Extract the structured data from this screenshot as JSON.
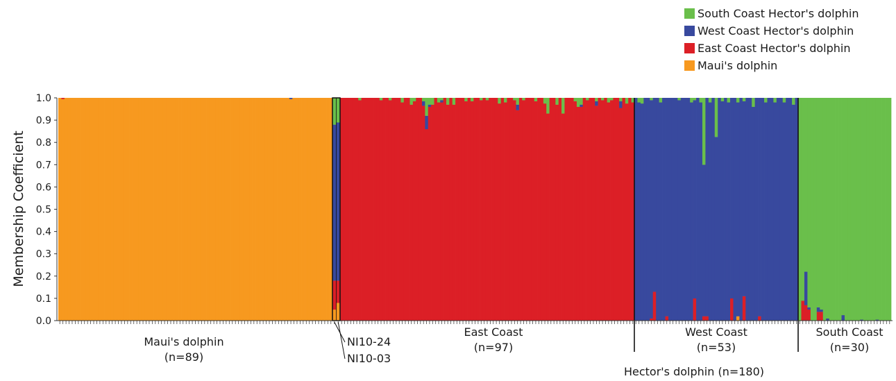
{
  "chart_data": {
    "type": "stacked-bar",
    "ylabel": "Membership Coefficient",
    "ylim": [
      0,
      1
    ],
    "yticks": [
      "0.0",
      "0.1",
      "0.2",
      "0.3",
      "0.4",
      "0.5",
      "0.6",
      "0.7",
      "0.8",
      "0.9",
      "1.0"
    ],
    "clusters": [
      {
        "name": "South Coast Hector's dolphin",
        "color": "#6abf4b"
      },
      {
        "name": "West Coast Hector's dolphin",
        "color": "#38499e"
      },
      {
        "name": "East Coast Hector's dolphin",
        "color": "#dc1f26"
      },
      {
        "name": "Maui's dolphin",
        "color": "#f7991f"
      }
    ],
    "legend_position": "top-right",
    "groups": [
      {
        "label": "Maui's dolphin",
        "n_label": "(n=89)",
        "n": 89
      },
      {
        "label": "East Coast",
        "n_label": "(n=97)",
        "n": 97
      },
      {
        "label": "West Coast",
        "n_label": "(n=53)",
        "n": 53
      },
      {
        "label": "South Coast",
        "n_label": "(n=30)",
        "n": 30
      }
    ],
    "hybrids": [
      {
        "label": "NI10-24",
        "maui": 0.05,
        "east": 0.13,
        "west": 0.7,
        "south": 0.12
      },
      {
        "label": "NI10-03",
        "maui": 0.08,
        "east": 0.1,
        "west": 0.71,
        "south": 0.11
      }
    ],
    "supergroup_label": "Hector's dolphin (n=180)",
    "deviations": {
      "maui": [
        {
          "i": 1,
          "east": 0.005
        },
        {
          "i": 75,
          "west": 0.005
        }
      ],
      "east": [
        {
          "i": 6,
          "south": 0.01
        },
        {
          "i": 13,
          "south": 0.01
        },
        {
          "i": 16,
          "south": 0.01
        },
        {
          "i": 20,
          "south": 0.02
        },
        {
          "i": 23,
          "south": 0.03
        },
        {
          "i": 24,
          "south": 0.015
        },
        {
          "i": 27,
          "south": 0.015,
          "west": 0.02
        },
        {
          "i": 28,
          "south": 0.08,
          "west": 0.06
        },
        {
          "i": 29,
          "south": 0.03,
          "west": 0.01
        },
        {
          "i": 30,
          "south": 0.03
        },
        {
          "i": 32,
          "south": 0.02
        },
        {
          "i": 33,
          "south": 0.01,
          "west": 0.01
        },
        {
          "i": 35,
          "south": 0.03
        },
        {
          "i": 37,
          "south": 0.03
        },
        {
          "i": 41,
          "south": 0.015
        },
        {
          "i": 43,
          "south": 0.015
        },
        {
          "i": 46,
          "south": 0.01
        },
        {
          "i": 48,
          "south": 0.01
        },
        {
          "i": 52,
          "south": 0.025
        },
        {
          "i": 54,
          "south": 0.02
        },
        {
          "i": 57,
          "south": 0.01
        },
        {
          "i": 58,
          "south": 0.03,
          "west": 0.025
        },
        {
          "i": 60,
          "south": 0.01
        },
        {
          "i": 64,
          "south": 0.015
        },
        {
          "i": 67,
          "south": 0.025
        },
        {
          "i": 68,
          "south": 0.07
        },
        {
          "i": 71,
          "south": 0.03
        },
        {
          "i": 73,
          "south": 0.07
        },
        {
          "i": 77,
          "south": 0.015
        },
        {
          "i": 78,
          "south": 0.04
        },
        {
          "i": 79,
          "south": 0.03,
          "west": 0.01
        },
        {
          "i": 81,
          "south": 0.01
        },
        {
          "i": 84,
          "south": 0.015,
          "west": 0.02
        },
        {
          "i": 86,
          "south": 0.01
        },
        {
          "i": 88,
          "south": 0.02
        },
        {
          "i": 89,
          "south": 0.01
        },
        {
          "i": 92,
          "south": 0.015,
          "west": 0.03
        },
        {
          "i": 94,
          "south": 0.025
        },
        {
          "i": 96,
          "south": 0.02
        }
      ],
      "west": [
        {
          "i": 1,
          "south": 0.02
        },
        {
          "i": 2,
          "south": 0.025
        },
        {
          "i": 5,
          "south": 0.01,
          "east": 0.01
        },
        {
          "i": 6,
          "east": 0.13
        },
        {
          "i": 8,
          "south": 0.02
        },
        {
          "i": 10,
          "east": 0.02
        },
        {
          "i": 14,
          "south": 0.01
        },
        {
          "i": 18,
          "south": 0.02
        },
        {
          "i": 19,
          "east": 0.1,
          "south": 0.01
        },
        {
          "i": 21,
          "south": 0.02
        },
        {
          "i": 22,
          "south": 0.3,
          "east": 0.02
        },
        {
          "i": 23,
          "east": 0.02
        },
        {
          "i": 24,
          "south": 0.02
        },
        {
          "i": 26,
          "south": 0.175
        },
        {
          "i": 28,
          "south": 0.015
        },
        {
          "i": 30,
          "south": 0.02
        },
        {
          "i": 31,
          "east": 0.1
        },
        {
          "i": 33,
          "south": 0.02,
          "maui": 0.02
        },
        {
          "i": 35,
          "east": 0.11,
          "south": 0.015
        },
        {
          "i": 38,
          "south": 0.04
        },
        {
          "i": 40,
          "east": 0.02
        },
        {
          "i": 42,
          "south": 0.02
        },
        {
          "i": 45,
          "south": 0.02
        },
        {
          "i": 48,
          "south": 0.02
        },
        {
          "i": 51,
          "south": 0.03
        }
      ],
      "south": [
        {
          "i": 1,
          "east": 0.09
        },
        {
          "i": 2,
          "east": 0.07,
          "west": 0.15
        },
        {
          "i": 3,
          "east": 0.05,
          "west": 0.01
        },
        {
          "i": 6,
          "east": 0.04,
          "west": 0.02
        },
        {
          "i": 7,
          "east": 0.04,
          "west": 0.01
        },
        {
          "i": 9,
          "west": 0.01
        },
        {
          "i": 14,
          "west": 0.025
        },
        {
          "i": 20,
          "west": 0.005
        },
        {
          "i": 25,
          "west": 0.005
        }
      ]
    }
  }
}
